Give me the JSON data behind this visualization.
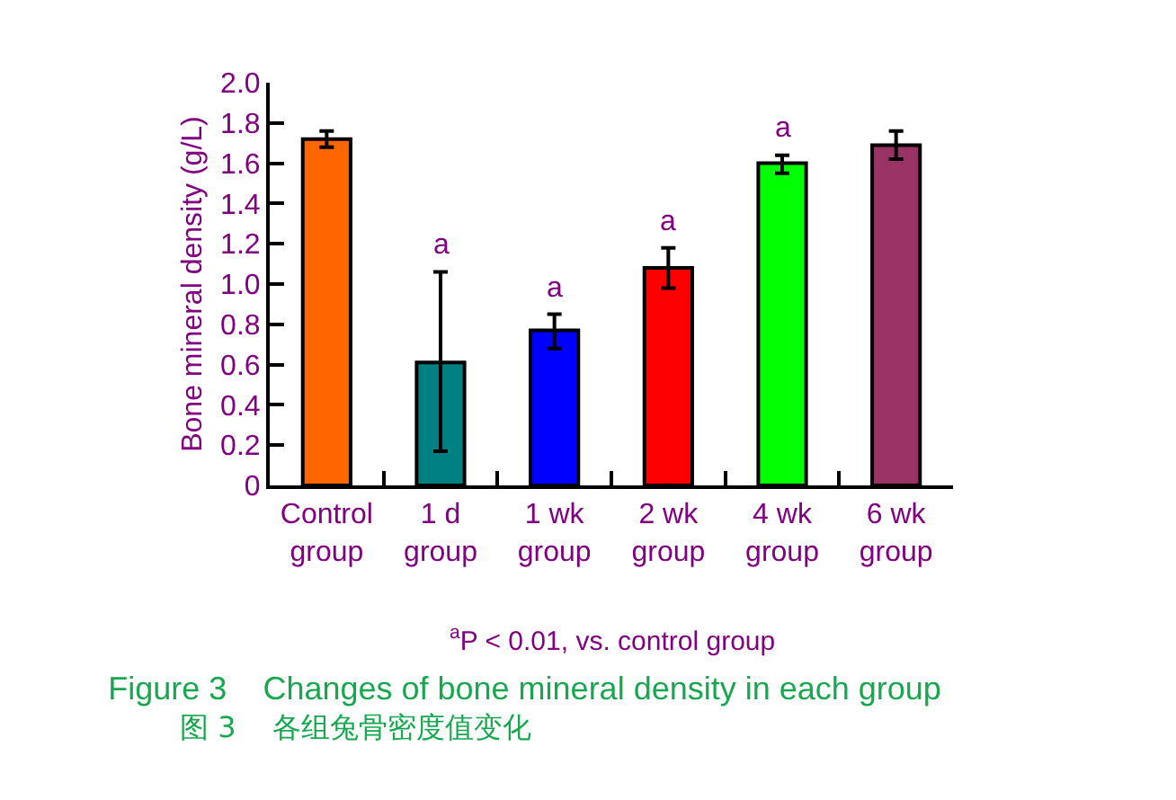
{
  "chart_data": {
    "type": "bar",
    "title": "Figure 3    Changes of bone mineral density in each group",
    "subtitle": "图 3    各组兔骨密度值变化",
    "ylabel": "Bone mineral density (g/L)",
    "categories": [
      "Control group",
      "1 d group",
      "1 wk group",
      "2 wk group",
      "4 wk group",
      "6 wk group"
    ],
    "values": [
      1.72,
      0.61,
      0.77,
      1.08,
      1.6,
      1.69
    ],
    "colors": [
      "#ff6600",
      "#008080",
      "#0000ff",
      "#ff0000",
      "#00ff00",
      "#993366"
    ],
    "errors": [
      0.04,
      [
        0.17,
        1.06
      ],
      [
        0.68,
        0.85
      ],
      [
        0.98,
        1.18
      ],
      [
        1.55,
        1.64
      ],
      [
        1.62,
        1.76
      ]
    ],
    "ylim": [
      0,
      2.0
    ],
    "yticks": [
      {
        "value": 0,
        "label": "0"
      },
      0.2,
      0.4,
      0.6,
      0.8,
      {
        "value": 1,
        "label": "1.0"
      },
      1.2,
      1.4,
      1.6,
      1.8,
      {
        "value": 2,
        "label": "2.0"
      }
    ],
    "annotations": [
      {
        "text": "a",
        "x": "1 d group",
        "y": 1.06
      },
      {
        "text": "a",
        "x": "1 wk group",
        "y": 0.85
      },
      {
        "text": "a",
        "x": "2 wk group",
        "y": 1.18
      },
      {
        "text": "a",
        "x": "4 wk group",
        "y": 1.64
      },
      "$^{a}$P < 0.01, vs. control group"
    ],
    "grid": false
  }
}
